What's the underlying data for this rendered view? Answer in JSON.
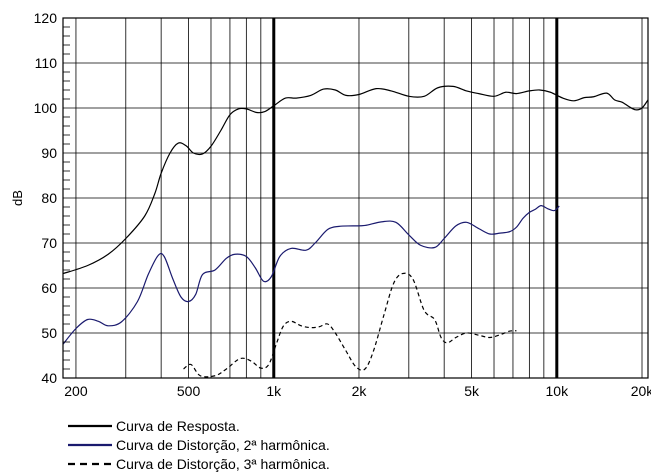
{
  "chart_data": {
    "type": "line",
    "title": "",
    "xlabel": "",
    "ylabel": "dB",
    "xscale": "log",
    "xlim": [
      180,
      21000
    ],
    "ylim": [
      40,
      120
    ],
    "grid": true,
    "legend_position": "bottom-left",
    "x_tick_labels": [
      {
        "value": 200,
        "label": "200"
      },
      {
        "value": 500,
        "label": "500"
      },
      {
        "value": 1000,
        "label": "1k"
      },
      {
        "value": 2000,
        "label": "2k"
      },
      {
        "value": 5000,
        "label": "5k"
      },
      {
        "value": 10000,
        "label": "10k"
      },
      {
        "value": 20000,
        "label": "20k"
      }
    ],
    "y_ticks": [
      40,
      50,
      60,
      70,
      80,
      90,
      100,
      110,
      120
    ],
    "series": [
      {
        "name": "Curva de Resposta.",
        "color": "#000000",
        "style": "solid",
        "points": [
          [
            180,
            63.2
          ],
          [
            220,
            65
          ],
          [
            260,
            67.5
          ],
          [
            300,
            71
          ],
          [
            350,
            76
          ],
          [
            380,
            81
          ],
          [
            400,
            85.5
          ],
          [
            430,
            90
          ],
          [
            460,
            92.2
          ],
          [
            490,
            91.6
          ],
          [
            520,
            90
          ],
          [
            560,
            89.8
          ],
          [
            600,
            91.5
          ],
          [
            650,
            95
          ],
          [
            700,
            98.5
          ],
          [
            750,
            99.8
          ],
          [
            800,
            99.8
          ],
          [
            870,
            99
          ],
          [
            930,
            99.2
          ],
          [
            1000,
            100.5
          ],
          [
            1100,
            102.2
          ],
          [
            1200,
            102.2
          ],
          [
            1350,
            102.8
          ],
          [
            1500,
            104.2
          ],
          [
            1650,
            104
          ],
          [
            1800,
            102.8
          ],
          [
            2000,
            103
          ],
          [
            2300,
            104.3
          ],
          [
            2600,
            103.8
          ],
          [
            3000,
            102.6
          ],
          [
            3400,
            102.6
          ],
          [
            3800,
            104.5
          ],
          [
            4300,
            104.8
          ],
          [
            4800,
            103.8
          ],
          [
            5300,
            103.2
          ],
          [
            6000,
            102.6
          ],
          [
            6600,
            103.5
          ],
          [
            7200,
            103.2
          ],
          [
            8000,
            103.8
          ],
          [
            8700,
            104
          ],
          [
            9500,
            103.5
          ],
          [
            10500,
            102.2
          ],
          [
            11500,
            101.6
          ],
          [
            12500,
            102.3
          ],
          [
            13500,
            102.5
          ],
          [
            15000,
            103.3
          ],
          [
            16000,
            101.8
          ],
          [
            17000,
            101.3
          ],
          [
            18000,
            100.3
          ],
          [
            19000,
            99.6
          ],
          [
            20000,
            100
          ],
          [
            21000,
            101.8
          ]
        ]
      },
      {
        "name": "Curva de Distorção, 2ª harmônica.",
        "color": "#1a1a6e",
        "style": "solid",
        "points": [
          [
            180,
            47.5
          ],
          [
            200,
            51
          ],
          [
            220,
            53
          ],
          [
            240,
            52.6
          ],
          [
            260,
            51.6
          ],
          [
            290,
            52.5
          ],
          [
            330,
            57
          ],
          [
            360,
            63
          ],
          [
            390,
            67.2
          ],
          [
            410,
            67
          ],
          [
            440,
            62
          ],
          [
            470,
            58
          ],
          [
            500,
            57
          ],
          [
            530,
            58.6
          ],
          [
            560,
            63
          ],
          [
            620,
            64
          ],
          [
            680,
            66.6
          ],
          [
            730,
            67.5
          ],
          [
            800,
            67
          ],
          [
            860,
            64.5
          ],
          [
            920,
            61.5
          ],
          [
            980,
            62.5
          ],
          [
            1050,
            67
          ],
          [
            1150,
            68.8
          ],
          [
            1300,
            68.4
          ],
          [
            1400,
            70
          ],
          [
            1550,
            73
          ],
          [
            1700,
            73.7
          ],
          [
            1900,
            73.8
          ],
          [
            2100,
            73.9
          ],
          [
            2400,
            74.7
          ],
          [
            2700,
            74.6
          ],
          [
            3000,
            71.8
          ],
          [
            3300,
            69.5
          ],
          [
            3700,
            69
          ],
          [
            4000,
            71
          ],
          [
            4400,
            73.8
          ],
          [
            4800,
            74.6
          ],
          [
            5300,
            73.2
          ],
          [
            5800,
            72
          ],
          [
            6300,
            72.2
          ],
          [
            6800,
            72.5
          ],
          [
            7200,
            73.5
          ],
          [
            7600,
            75.5
          ],
          [
            8000,
            76.8
          ],
          [
            8400,
            77.5
          ],
          [
            8800,
            78.3
          ],
          [
            9300,
            77.6
          ],
          [
            9800,
            77.2
          ],
          [
            10200,
            78.2
          ]
        ]
      },
      {
        "name": "Curva de Distorção, 3ª harmônica.",
        "color": "#000000",
        "style": "dashed",
        "points": [
          [
            480,
            42
          ],
          [
            510,
            43
          ],
          [
            550,
            40.5
          ],
          [
            620,
            40.5
          ],
          [
            680,
            42
          ],
          [
            760,
            44.3
          ],
          [
            830,
            43.8
          ],
          [
            900,
            42.2
          ],
          [
            960,
            43
          ],
          [
            1020,
            47.5
          ],
          [
            1080,
            51.5
          ],
          [
            1150,
            52.6
          ],
          [
            1250,
            51.6
          ],
          [
            1350,
            51.2
          ],
          [
            1450,
            51.4
          ],
          [
            1550,
            52
          ],
          [
            1650,
            50
          ],
          [
            1800,
            46
          ],
          [
            1950,
            42.5
          ],
          [
            2100,
            42
          ],
          [
            2250,
            46
          ],
          [
            2450,
            54
          ],
          [
            2650,
            61
          ],
          [
            2850,
            63.2
          ],
          [
            3100,
            62
          ],
          [
            3400,
            55
          ],
          [
            3700,
            53
          ],
          [
            3900,
            49
          ],
          [
            4100,
            47.8
          ],
          [
            4400,
            49
          ],
          [
            4800,
            50
          ],
          [
            5300,
            49.5
          ],
          [
            5800,
            49
          ],
          [
            6300,
            49.6
          ],
          [
            6800,
            50.4
          ],
          [
            7200,
            50.5
          ]
        ]
      }
    ]
  }
}
